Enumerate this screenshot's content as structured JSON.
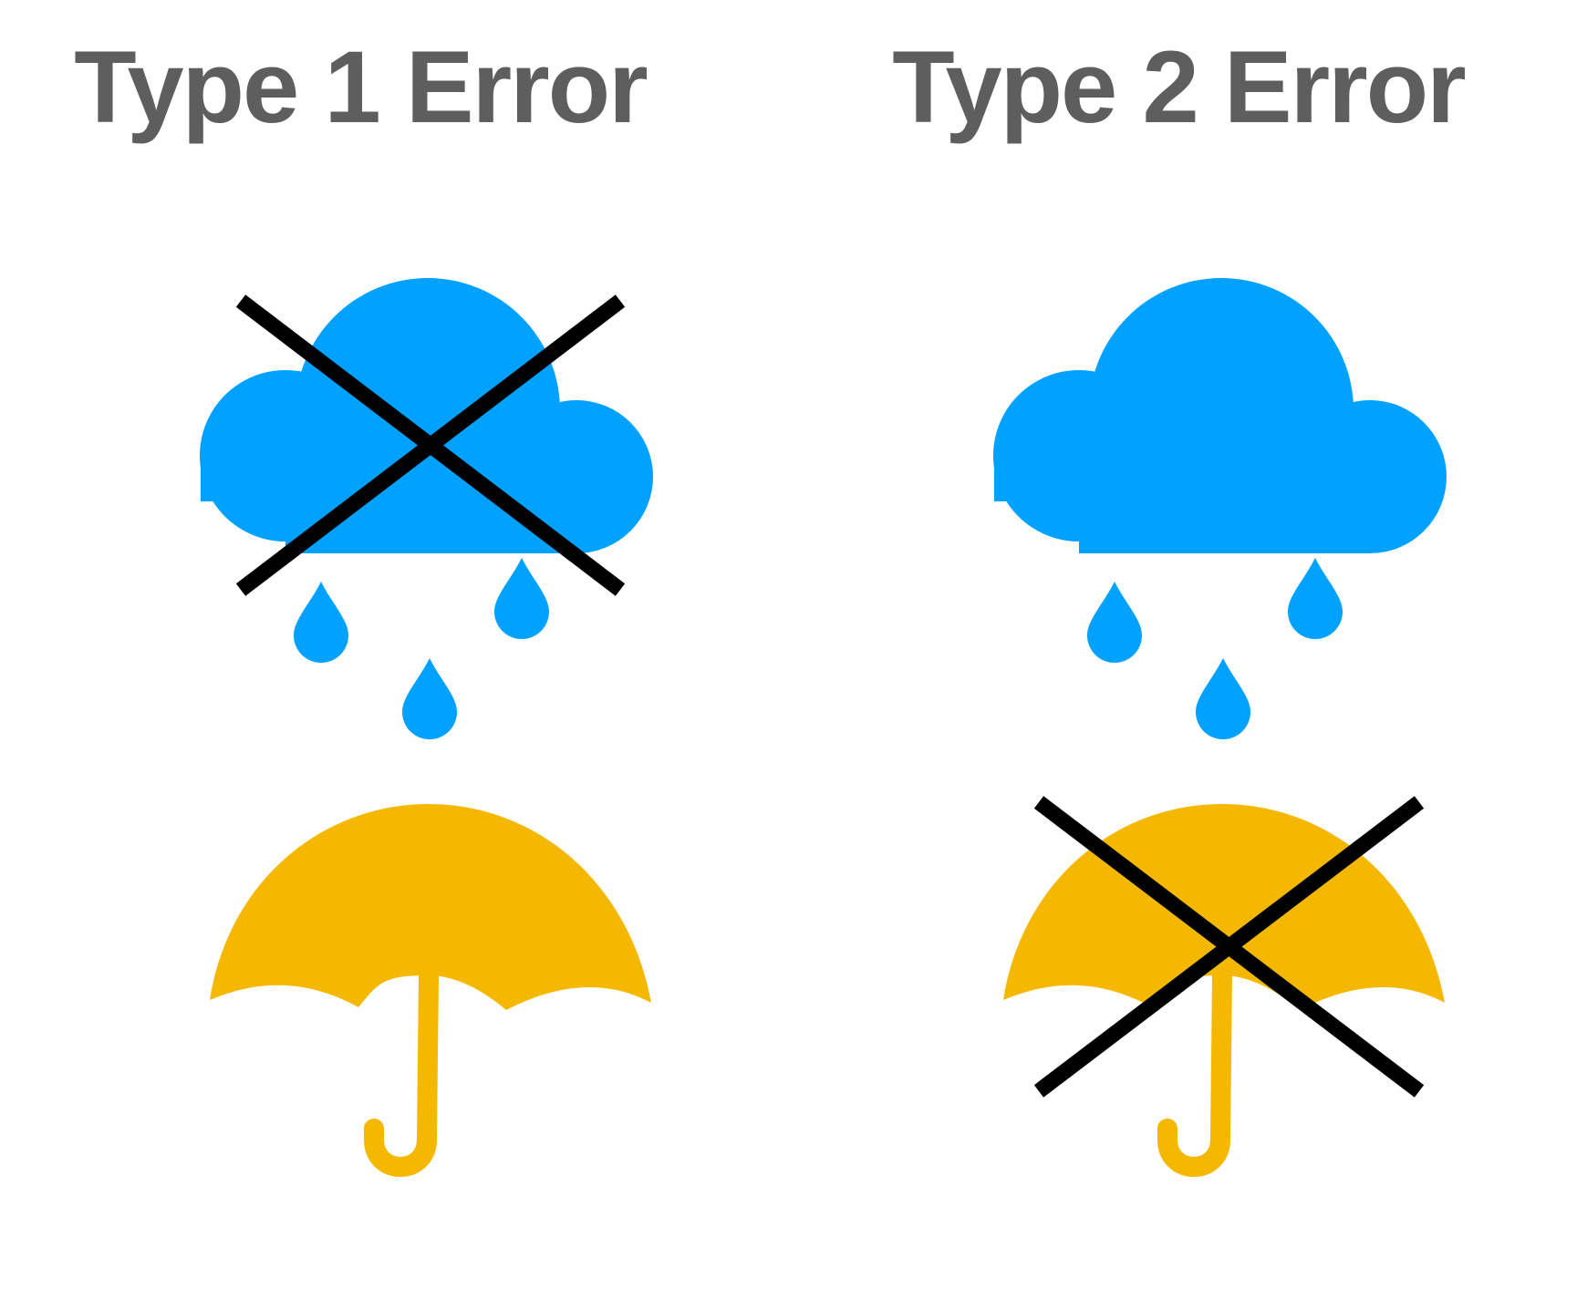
{
  "panels": [
    {
      "title": "Type 1 Error",
      "crossed_out": "rain-cloud-icon"
    },
    {
      "title": "Type 2 Error",
      "crossed_out": "umbrella-icon"
    }
  ],
  "colors": {
    "title": "#5e5e5e",
    "cloud": "#00a1ff",
    "umbrella": "#f5b800",
    "cross": "#000000",
    "background": "#ffffff"
  }
}
